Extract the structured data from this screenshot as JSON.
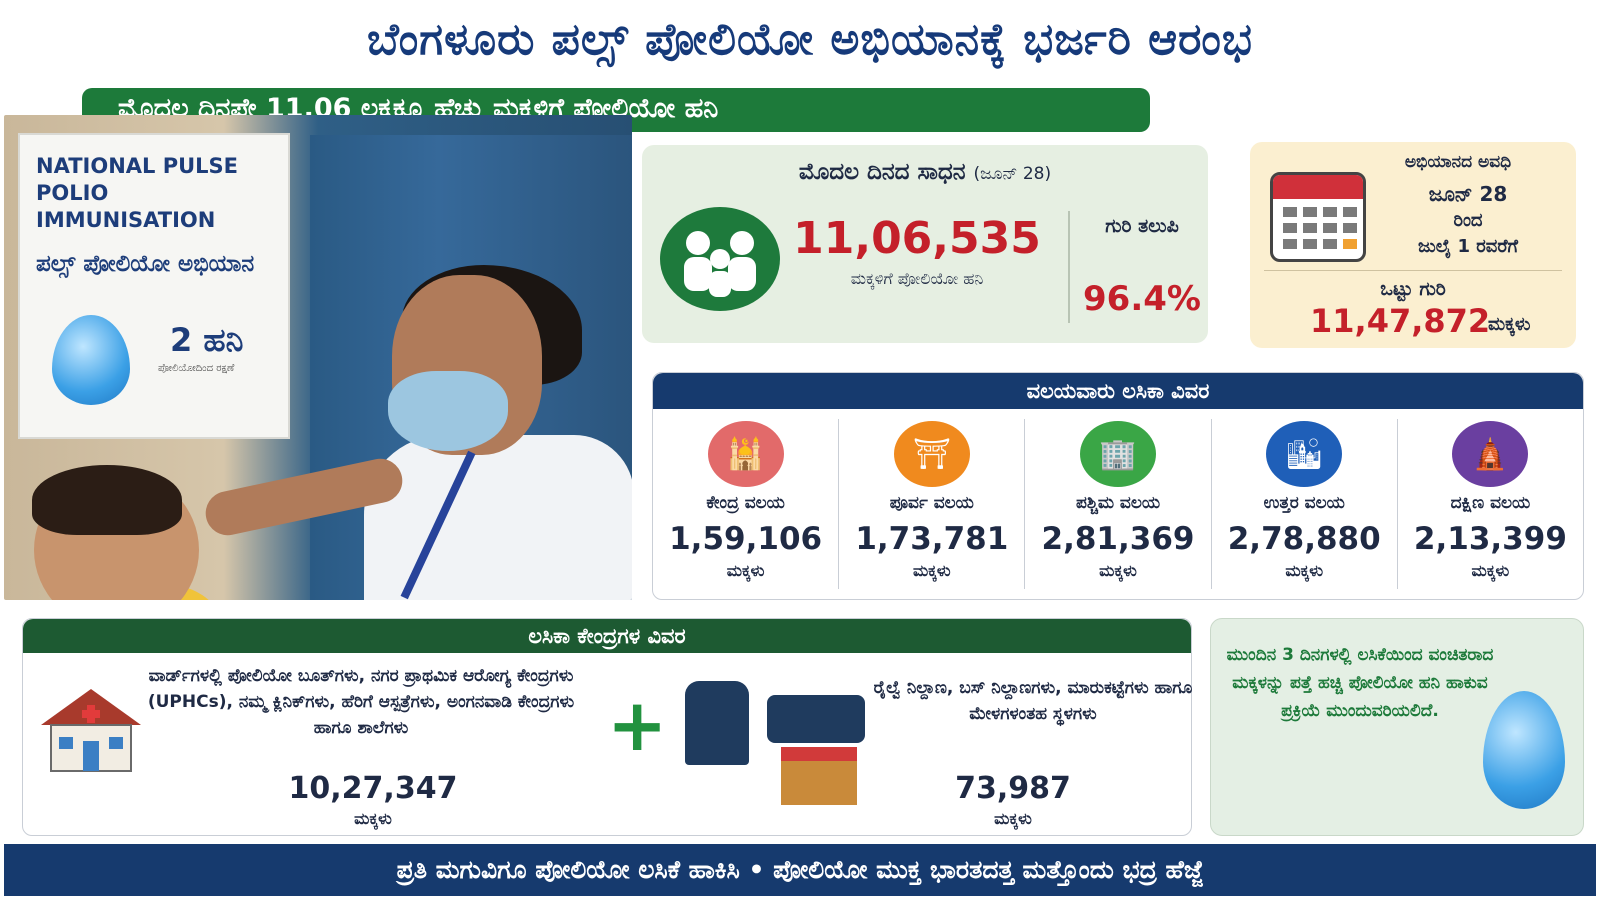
{
  "title": "ಬೆಂಗಳೂರು ಪಲ್ಸ್ ಪೋಲಿಯೋ ಅಭಿಯಾನಕ್ಕೆ ಭರ್ಜರಿ ಆರಂಭ",
  "subtitle": "ಮೊದಲ ದಿನಪೇ 11.06 ಲಕ್ಷಕ್ಕೂ ಹೆಚ್ಚು ಮಕ್ಕಳಿಗೆ ಪೋಲಿಯೋ ಹನಿ",
  "photo": {
    "poster_line1": "NATIONAL PULSE",
    "poster_line2": "POLIO IMMUNISATION",
    "poster_kn": "ಪಲ್ಸ್ ಪೋಲಿಯೋ ಅಭಿಯಾನ",
    "poster_drops": "2 ಹನಿ",
    "poster_small": "ಪೋಲಿಯೋದಿಂದ ರಕ್ಷಣೆ"
  },
  "achievement": {
    "heading": "ಮೊದಲ ದಿನದ ಸಾಧನ",
    "heading_date": "(ಜೂನ್ 28)",
    "icon": "family-icon",
    "count": "11,06,535",
    "count_label": "ಮಕ್ಕಳಿಗೆ ಪೋಲಿಯೋ ಹನಿ",
    "goal_label": "ಗುರಿ ತಲುಪಿ",
    "percent": "96.4%",
    "percent_value": 96.4
  },
  "duration": {
    "heading": "ಅಭಿಯಾನದ ಅವಧಿ",
    "icon": "calendar-icon",
    "from": "ಜೂನ್ 28",
    "from_suffix": "ರಿಂದ",
    "to": "ಜುಲೈ 1 ರವರೆಗೆ",
    "target_label": "ಒಟ್ಟು ಗುರಿ",
    "target_value": "11,47,872",
    "target_unit": "ಮಕ್ಕಳು"
  },
  "zones": {
    "heading": "ವಲಯವಾರು ಲಸಿಕಾ ವಿವರ",
    "items": [
      {
        "name": "ಕೇಂದ್ರ ವಲಯ",
        "value": "1,59,106",
        "unit": "ಮಕ್ಕಳು",
        "icon": "dome-icon",
        "color": "#e26a6a"
      },
      {
        "name": "ಪೂರ್ವ ವಲಯ",
        "value": "1,73,781",
        "unit": "ಮಕ್ಕಳು",
        "icon": "gate-icon",
        "color": "#f08a1e"
      },
      {
        "name": "ಪಶ್ಚಿಮ ವಲಯ",
        "value": "2,81,369",
        "unit": "ಮಕ್ಕಳು",
        "icon": "buildings-icon",
        "color": "#3aa646"
      },
      {
        "name": "ಉತ್ತರ ವಲಯ",
        "value": "2,78,880",
        "unit": "ಮಕ್ಕಳು",
        "icon": "towers-icon",
        "color": "#1f5fb8"
      },
      {
        "name": "ದಕ್ಷಿಣ ವಲಯ",
        "value": "2,13,399",
        "unit": "ಮಕ್ಕಳು",
        "icon": "temple-icon",
        "color": "#6a3fa0"
      }
    ]
  },
  "centers": {
    "heading": "ಲಸಿಕಾ ಕೇಂದ್ರಗಳ ವಿವರ",
    "left_text": "ವಾರ್ಡ್‌ಗಳಲ್ಲಿ ಪೋಲಿಯೋ ಬೂತ್‌ಗಳು, ನಗರ ಪ್ರಾಥಮಿಕ ಆರೋಗ್ಯ ಕೇಂದ್ರಗಳು (UPHCs), ನಮ್ಮ ಕ್ಲಿನಿಕ್‌ಗಳು, ಹೆರಿಗೆ ಆಸ್ಪತ್ರೆಗಳು, ಅಂಗನವಾಡಿ ಕೇಂದ್ರಗಳು ಹಾಗೂ ಶಾಲೆಗಳು",
    "left_value": "10,27,347",
    "left_unit": "ಮಕ್ಕಳು",
    "right_text": "ರೈಲ್ವೆ ನಿಲ್ದಾಣ, ಬಸ್ ನಿಲ್ದಾಣಗಳು, ಮಾರುಕಟ್ಟೆಗಳು ಹಾಗೂ ಮೇಳಗಳಂತಹ ಸ್ಥಳಗಳು",
    "right_value": "73,987",
    "right_unit": "ಮಕ್ಕಳು"
  },
  "note": {
    "text": "ಮುಂದಿನ 3 ದಿನಗಳಲ್ಲಿ ಲಸಿಕೆಯಿಂದ ವಂಚಿತರಾದ ಮಕ್ಕಳನ್ನು ಪತ್ತೆ ಹಚ್ಚಿ ಪೋಲಿಯೋ ಹನಿ ಹಾಕುವ ಪ್ರಕ್ರಿಯೆ ಮುಂದುವರಿಯಲಿದೆ."
  },
  "footer": "ಪ್ರತಿ ಮಗುವಿಗೂ ಪೋಲಿಯೋ ಲಸಿಕೆ ಹಾಕಿಸಿ • ಪೋಲಿಯೋ ಮುಕ್ತ ಭಾರತದತ್ತ ಮತ್ತೊಂದು ಭದ್ರ ಹೆಜ್ಜೆ"
}
